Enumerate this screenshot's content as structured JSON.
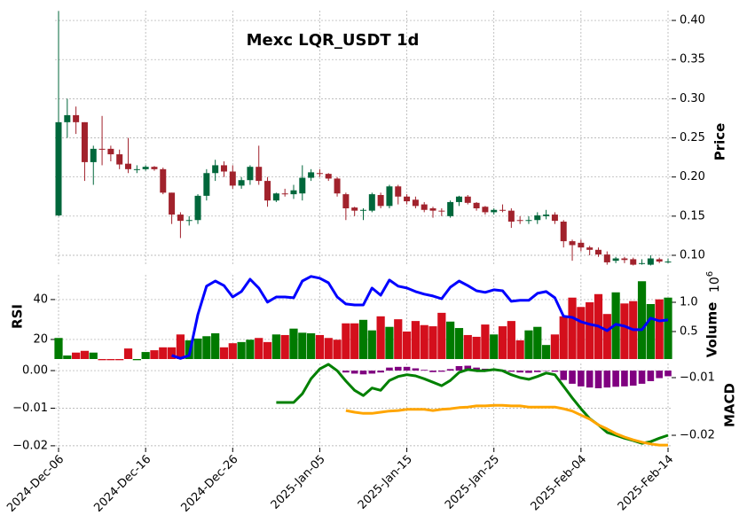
{
  "chart_data": [
    {
      "type": "candlestick",
      "title": "Mexc LQR_USDT 1d",
      "ylabel": "Price",
      "x": [
        "2024-Dec-06",
        "2024-Dec-07",
        "2024-Dec-08",
        "2024-Dec-09",
        "2024-Dec-10",
        "2024-Dec-11",
        "2024-Dec-12",
        "2024-Dec-13",
        "2024-Dec-14",
        "2024-Dec-15",
        "2024-Dec-16",
        "2024-Dec-17",
        "2024-Dec-18",
        "2024-Dec-19",
        "2024-Dec-20",
        "2024-Dec-21",
        "2024-Dec-22",
        "2024-Dec-23",
        "2024-Dec-24",
        "2024-Dec-25",
        "2024-Dec-26",
        "2024-Dec-27",
        "2024-Dec-28",
        "2024-Dec-29",
        "2024-Dec-30",
        "2024-Dec-31",
        "2025-Jan-01",
        "2025-Jan-02",
        "2025-Jan-03",
        "2025-Jan-04",
        "2025-Jan-05",
        "2025-Jan-06",
        "2025-Jan-07",
        "2025-Jan-08",
        "2025-Jan-09",
        "2025-Jan-10",
        "2025-Jan-11",
        "2025-Jan-12",
        "2025-Jan-13",
        "2025-Jan-14",
        "2025-Jan-15",
        "2025-Jan-16",
        "2025-Jan-17",
        "2025-Jan-18",
        "2025-Jan-19",
        "2025-Jan-20",
        "2025-Jan-21",
        "2025-Jan-22",
        "2025-Jan-23",
        "2025-Jan-24",
        "2025-Jan-25",
        "2025-Jan-26",
        "2025-Jan-27",
        "2025-Jan-28",
        "2025-Jan-29",
        "2025-Jan-30",
        "2025-Jan-31",
        "2025-Feb-01",
        "2025-Feb-02",
        "2025-Feb-03",
        "2025-Feb-04",
        "2025-Feb-05",
        "2025-Feb-06",
        "2025-Feb-07",
        "2025-Feb-08",
        "2025-Feb-09",
        "2025-Feb-10",
        "2025-Feb-11",
        "2025-Feb-12",
        "2025-Feb-13",
        "2025-Feb-14"
      ],
      "open": [
        0.151,
        0.27,
        0.279,
        0.27,
        0.219,
        0.236,
        0.236,
        0.229,
        0.217,
        0.21,
        0.21,
        0.213,
        0.21,
        0.18,
        0.152,
        0.145,
        0.145,
        0.176,
        0.205,
        0.215,
        0.207,
        0.189,
        0.196,
        0.213,
        0.195,
        0.17,
        0.179,
        0.178,
        0.179,
        0.199,
        0.205,
        0.204,
        0.198,
        0.178,
        0.161,
        0.158,
        0.157,
        0.177,
        0.163,
        0.188,
        0.175,
        0.171,
        0.165,
        0.16,
        0.157,
        0.15,
        0.168,
        0.175,
        0.167,
        0.162,
        0.155,
        0.158,
        0.157,
        0.145,
        0.144,
        0.145,
        0.15,
        0.152,
        0.143,
        0.118,
        0.116,
        0.11,
        0.107,
        0.101,
        0.093,
        0.096,
        0.095,
        0.09,
        0.088,
        0.095,
        0.092
      ],
      "high": [
        0.412,
        0.3,
        0.29,
        0.27,
        0.24,
        0.278,
        0.24,
        0.235,
        0.25,
        0.215,
        0.215,
        0.214,
        0.212,
        0.18,
        0.155,
        0.15,
        0.178,
        0.21,
        0.222,
        0.22,
        0.215,
        0.2,
        0.215,
        0.24,
        0.2,
        0.18,
        0.185,
        0.19,
        0.215,
        0.21,
        0.21,
        0.205,
        0.2,
        0.18,
        0.162,
        0.16,
        0.18,
        0.18,
        0.19,
        0.19,
        0.178,
        0.175,
        0.168,
        0.162,
        0.16,
        0.17,
        0.176,
        0.177,
        0.168,
        0.163,
        0.16,
        0.165,
        0.16,
        0.15,
        0.15,
        0.155,
        0.158,
        0.155,
        0.145,
        0.12,
        0.12,
        0.112,
        0.11,
        0.105,
        0.098,
        0.098,
        0.097,
        0.095,
        0.1,
        0.097,
        0.096
      ],
      "low": [
        0.15,
        0.25,
        0.255,
        0.195,
        0.19,
        0.215,
        0.22,
        0.21,
        0.205,
        0.205,
        0.208,
        0.208,
        0.178,
        0.14,
        0.122,
        0.138,
        0.14,
        0.17,
        0.195,
        0.2,
        0.185,
        0.185,
        0.19,
        0.19,
        0.162,
        0.168,
        0.175,
        0.172,
        0.17,
        0.195,
        0.2,
        0.195,
        0.175,
        0.145,
        0.15,
        0.145,
        0.155,
        0.16,
        0.16,
        0.165,
        0.165,
        0.16,
        0.155,
        0.148,
        0.15,
        0.148,
        0.163,
        0.165,
        0.157,
        0.152,
        0.152,
        0.155,
        0.135,
        0.14,
        0.14,
        0.14,
        0.146,
        0.14,
        0.11,
        0.093,
        0.105,
        0.1,
        0.098,
        0.088,
        0.09,
        0.09,
        0.087,
        0.088,
        0.087,
        0.09,
        0.09
      ],
      "close": [
        0.27,
        0.279,
        0.27,
        0.219,
        0.236,
        0.235,
        0.229,
        0.216,
        0.21,
        0.21,
        0.213,
        0.21,
        0.18,
        0.152,
        0.144,
        0.145,
        0.176,
        0.205,
        0.215,
        0.207,
        0.189,
        0.196,
        0.213,
        0.195,
        0.17,
        0.179,
        0.178,
        0.183,
        0.199,
        0.206,
        0.204,
        0.198,
        0.179,
        0.16,
        0.157,
        0.158,
        0.178,
        0.163,
        0.188,
        0.175,
        0.169,
        0.163,
        0.158,
        0.157,
        0.156,
        0.168,
        0.175,
        0.167,
        0.16,
        0.155,
        0.158,
        0.157,
        0.143,
        0.144,
        0.145,
        0.151,
        0.152,
        0.144,
        0.118,
        0.113,
        0.11,
        0.107,
        0.101,
        0.091,
        0.096,
        0.094,
        0.088,
        0.09,
        0.096,
        0.092,
        0.092
      ],
      "up_color": "#00673b",
      "down_color": "#a1222c",
      "ylim": [
        0.0864,
        0.4125
      ],
      "yticks": [
        {
          "value": 0.1,
          "label": "0.10"
        },
        {
          "value": 0.15,
          "label": "0.15"
        },
        {
          "value": 0.2,
          "label": "0.20"
        },
        {
          "value": 0.25,
          "label": "0.25"
        },
        {
          "value": 0.3,
          "label": "0.30"
        },
        {
          "value": 0.35,
          "label": "0.35"
        },
        {
          "value": 0.4,
          "label": "0.40"
        }
      ],
      "grid": true
    },
    {
      "type": "volume-rsi",
      "ylabel": "RSI",
      "y2label": "Volume",
      "y2_multiplier": {
        "base": "10",
        "exponent": "6"
      },
      "up_color": "#007a00",
      "down_color": "#d40f1c",
      "series": [
        {
          "axis": "y2",
          "values": [
            0.39,
            0.09,
            0.14,
            0.17,
            0.14,
            0.01,
            0.01,
            0.01,
            0.21,
            0.01,
            0.15,
            0.18,
            0.23,
            0.23,
            0.45,
            0.35,
            0.38,
            0.42,
            0.47,
            0.23,
            0.3,
            0.32,
            0.36,
            0.39,
            0.32,
            0.45,
            0.44,
            0.55,
            0.48,
            0.47,
            0.44,
            0.39,
            0.36,
            0.64,
            0.64,
            0.7,
            0.52,
            0.76,
            0.58,
            0.71,
            0.5,
            0.68,
            0.61,
            0.59,
            0.82,
            0.67,
            0.56,
            0.44,
            0.41,
            0.62,
            0.45,
            0.59,
            0.68,
            0.35,
            0.52,
            0.58,
            0.27,
            0.45,
            0.76,
            1.08,
            0.92,
            1.0,
            1.14,
            0.8,
            1.17,
            0.98,
            1.02,
            1.36,
            0.97,
            1.05,
            1.08
          ]
        },
        {
          "axis": "y",
          "color": "#0000ff",
          "values": [
            null,
            null,
            null,
            null,
            null,
            null,
            null,
            null,
            null,
            null,
            null,
            null,
            null,
            12,
            10.5,
            12,
            32.4,
            46.7,
            49.3,
            47,
            41.3,
            44,
            50.2,
            45.8,
            38.7,
            41.3,
            41.3,
            40.9,
            49.3,
            51.6,
            50.7,
            48.4,
            41.3,
            37.8,
            37.3,
            37.3,
            45.8,
            42.2,
            49.8,
            46.7,
            45.8,
            44,
            42.7,
            41.8,
            40.4,
            46.2,
            49.3,
            47,
            44.4,
            43.6,
            44.9,
            44.4,
            39.1,
            39.6,
            39.6,
            43.1,
            44,
            40.9,
            31.6,
            31.1,
            28.9,
            27.6,
            26.7,
            24.4,
            27.6,
            26.7,
            24.9,
            24.9,
            30.7,
            29.3,
            29.8
          ]
        }
      ],
      "ylim": [
        10.2,
        52.4
      ],
      "yticks": [
        20,
        40
      ],
      "y2lim": [
        0.03,
        1.47
      ],
      "y2ticks": [
        {
          "value": 0.5,
          "label": "0.5"
        },
        {
          "value": 1,
          "label": "1.0"
        }
      ],
      "grid": true
    },
    {
      "type": "macd",
      "y2label": "MACD",
      "series": [
        {
          "axis": "y",
          "color": "#800080",
          "values": [
            null,
            null,
            null,
            null,
            null,
            null,
            null,
            null,
            null,
            null,
            null,
            null,
            null,
            null,
            null,
            null,
            null,
            null,
            null,
            null,
            null,
            null,
            null,
            null,
            null,
            null,
            null,
            null,
            null,
            null,
            null,
            null,
            null,
            -0.0005,
            -0.0008,
            -0.001,
            -0.0008,
            -0.0005,
            0.0008,
            0.001,
            0.001,
            0.0006,
            0.0002,
            -0.0004,
            -0.0003,
            0.0004,
            0.0012,
            0.0013,
            0.0008,
            0.0005,
            0.0003,
            0.0002,
            -0.0003,
            -0.0005,
            -0.0006,
            -0.0004,
            -0.0001,
            -0.0003,
            -0.0025,
            -0.0035,
            -0.0042,
            -0.0045,
            -0.0047,
            -0.0045,
            -0.0043,
            -0.0042,
            -0.004,
            -0.0035,
            -0.0028,
            -0.002,
            -0.0015
          ]
        },
        {
          "axis": "y2",
          "color": "#008000",
          "values": [
            null,
            null,
            null,
            null,
            null,
            null,
            null,
            null,
            null,
            null,
            null,
            null,
            null,
            null,
            null,
            null,
            null,
            null,
            null,
            null,
            null,
            null,
            null,
            null,
            null,
            -0.0143,
            -0.0143,
            -0.0143,
            -0.0128,
            -0.0102,
            -0.0085,
            -0.0077,
            -0.0088,
            -0.0106,
            -0.0122,
            -0.0131,
            -0.0118,
            -0.0122,
            -0.0105,
            -0.0098,
            -0.0095,
            -0.0097,
            -0.0102,
            -0.0108,
            -0.0114,
            -0.0105,
            -0.0091,
            -0.0086,
            -0.0088,
            -0.0088,
            -0.0086,
            -0.0088,
            -0.0095,
            -0.01,
            -0.0103,
            -0.0098,
            -0.0092,
            -0.0095,
            -0.0115,
            -0.0135,
            -0.0154,
            -0.0171,
            -0.0182,
            -0.0195,
            -0.02,
            -0.0205,
            -0.0209,
            -0.0214,
            -0.0211,
            -0.0205,
            -0.02
          ]
        },
        {
          "axis": "y2",
          "color": "#ffa500",
          "values": [
            null,
            null,
            null,
            null,
            null,
            null,
            null,
            null,
            null,
            null,
            null,
            null,
            null,
            null,
            null,
            null,
            null,
            null,
            null,
            null,
            null,
            null,
            null,
            null,
            null,
            null,
            null,
            null,
            null,
            null,
            null,
            null,
            null,
            -0.0157,
            -0.016,
            -0.0162,
            -0.0162,
            -0.016,
            -0.0158,
            -0.0157,
            -0.0155,
            -0.0155,
            -0.0155,
            -0.0157,
            -0.0155,
            -0.0154,
            -0.0152,
            -0.0151,
            -0.0149,
            -0.0149,
            -0.0148,
            -0.0148,
            -0.0149,
            -0.0149,
            -0.0151,
            -0.0151,
            -0.0151,
            -0.0151,
            -0.0154,
            -0.0158,
            -0.0165,
            -0.0172,
            -0.0182,
            -0.0189,
            -0.0197,
            -0.0203,
            -0.0208,
            -0.0212,
            -0.0215,
            -0.0217,
            -0.0217
          ]
        }
      ],
      "ylim": [
        -0.0205,
        0.0019
      ],
      "yticks": [
        {
          "value": -0.02,
          "label": "−0.02"
        },
        {
          "value": -0.01,
          "label": "−0.01"
        },
        {
          "value": 0,
          "label": "0.00"
        }
      ],
      "y2lim": [
        -0.02215,
        -0.00754
      ],
      "y2ticks": [
        {
          "value": -0.02,
          "label": "−0.02"
        },
        {
          "value": -0.01,
          "label": "−0.01"
        }
      ],
      "grid": true
    }
  ]
}
